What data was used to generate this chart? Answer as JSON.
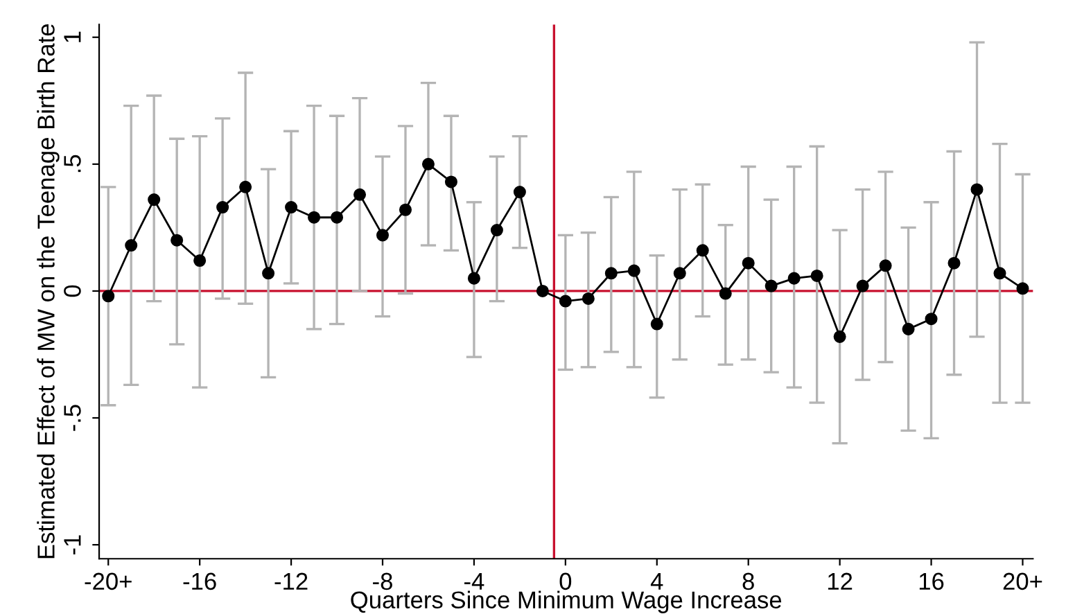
{
  "chart_data": {
    "type": "line",
    "xlabel": "Quarters Since Minimum Wage Increase",
    "ylabel": "Estimated Effect of MW on the Teenage Birth Rate",
    "x": [
      -20,
      -19,
      -18,
      -17,
      -16,
      -15,
      -14,
      -13,
      -12,
      -11,
      -10,
      -9,
      -8,
      -7,
      -6,
      -5,
      -4,
      -3,
      -2,
      -1,
      0,
      1,
      2,
      3,
      4,
      5,
      6,
      7,
      8,
      9,
      10,
      11,
      12,
      13,
      14,
      15,
      16,
      17,
      18,
      19,
      20
    ],
    "series": [
      {
        "color": "#000000",
        "values": [
          -0.02,
          0.18,
          0.36,
          0.2,
          0.12,
          0.33,
          0.41,
          0.07,
          0.33,
          0.29,
          0.29,
          0.38,
          0.22,
          0.32,
          0.5,
          0.43,
          0.05,
          0.24,
          0.39,
          0.0,
          -0.04,
          -0.03,
          0.07,
          0.08,
          -0.13,
          0.07,
          0.16,
          -0.01,
          0.11,
          0.02,
          0.05,
          0.06,
          -0.18,
          0.02,
          0.1,
          -0.15,
          -0.11,
          0.11,
          0.4,
          0.07,
          0.01
        ],
        "errors": [
          [
            -0.45,
            0.41
          ],
          [
            -0.37,
            0.73
          ],
          [
            -0.04,
            0.77
          ],
          [
            -0.21,
            0.6
          ],
          [
            -0.38,
            0.61
          ],
          [
            -0.03,
            0.68
          ],
          [
            -0.05,
            0.86
          ],
          [
            -0.34,
            0.48
          ],
          [
            0.03,
            0.63
          ],
          [
            -0.15,
            0.73
          ],
          [
            -0.13,
            0.69
          ],
          [
            0.0,
            0.76
          ],
          [
            -0.1,
            0.53
          ],
          [
            -0.01,
            0.65
          ],
          [
            0.18,
            0.82
          ],
          [
            0.16,
            0.69
          ],
          [
            -0.26,
            0.35
          ],
          [
            -0.04,
            0.53
          ],
          [
            0.17,
            0.61
          ],
          null,
          [
            -0.31,
            0.22
          ],
          [
            -0.3,
            0.23
          ],
          [
            -0.24,
            0.37
          ],
          [
            -0.3,
            0.47
          ],
          [
            -0.42,
            0.14
          ],
          [
            -0.27,
            0.4
          ],
          [
            -0.1,
            0.42
          ],
          [
            -0.29,
            0.26
          ],
          [
            -0.27,
            0.49
          ],
          [
            -0.32,
            0.36
          ],
          [
            -0.38,
            0.49
          ],
          [
            -0.44,
            0.57
          ],
          [
            -0.6,
            0.24
          ],
          [
            -0.35,
            0.4
          ],
          [
            -0.28,
            0.47
          ],
          [
            -0.55,
            0.25
          ],
          [
            -0.58,
            0.35
          ],
          [
            -0.33,
            0.55
          ],
          [
            -0.18,
            0.98
          ],
          [
            -0.44,
            0.58
          ],
          [
            -0.44,
            0.46
          ]
        ]
      }
    ],
    "marker": "circle",
    "line_style": "solid",
    "grid": false,
    "legend": false,
    "xlim": [
      -20.4,
      20.45
    ],
    "ylim": [
      -1.055,
      1.05
    ],
    "xticks": [
      {
        "value": -20,
        "label": "-20+"
      },
      -16,
      -12,
      -8,
      -4,
      0,
      4,
      8,
      12,
      16,
      {
        "value": 20,
        "label": "20+"
      }
    ],
    "yticks": [
      {
        "value": -1,
        "label": "-1"
      },
      {
        "value": -0.5,
        "label": "-.5"
      },
      0,
      {
        "value": 0.5,
        "label": ".5"
      },
      1
    ],
    "ref_lines": [
      {
        "axis": "y",
        "value": 0,
        "color": "#c8102e"
      },
      {
        "axis": "x",
        "value": -0.5,
        "color": "#c8102e"
      }
    ]
  }
}
